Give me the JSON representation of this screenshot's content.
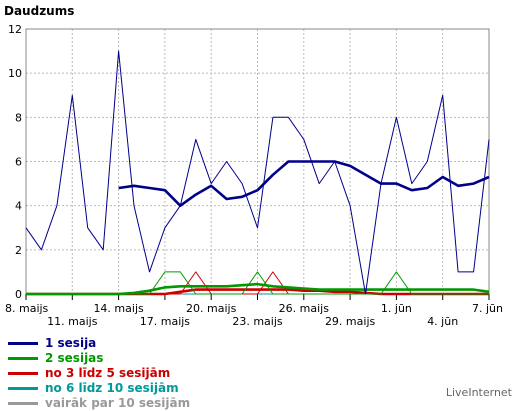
{
  "chart_data": {
    "type": "line",
    "title": "Daudzums",
    "ylim": [
      0,
      12
    ],
    "yticks": [
      0,
      2,
      4,
      6,
      8,
      10,
      12
    ],
    "grid": true,
    "x": [
      "8. maijs",
      "9. maijs",
      "10. maijs",
      "11. maijs",
      "12. maijs",
      "13. maijs",
      "14. maijs",
      "15. maijs",
      "16. maijs",
      "17. maijs",
      "18. maijs",
      "19. maijs",
      "20. maijs",
      "21. maijs",
      "22. maijs",
      "23. maijs",
      "24. maijs",
      "25. maijs",
      "26. maijs",
      "27. maijs",
      "28. maijs",
      "29. maijs",
      "30. maijs",
      "31. maijs",
      "1. jūn",
      "2. jūn",
      "3. jūn",
      "4. jūn",
      "5. jūn",
      "6. jūn",
      "7. jūn"
    ],
    "xtick_labels": [
      {
        "index": 0,
        "label": "8. maijs",
        "row": 0
      },
      {
        "index": 3,
        "label": "11. maijs",
        "row": 1
      },
      {
        "index": 6,
        "label": "14. maijs",
        "row": 0
      },
      {
        "index": 9,
        "label": "17. maijs",
        "row": 1
      },
      {
        "index": 12,
        "label": "20. maijs",
        "row": 0
      },
      {
        "index": 15,
        "label": "23. maijs",
        "row": 1
      },
      {
        "index": 18,
        "label": "26. maijs",
        "row": 0
      },
      {
        "index": 21,
        "label": "29. maijs",
        "row": 1
      },
      {
        "index": 24,
        "label": "1. jūn",
        "row": 0
      },
      {
        "index": 27,
        "label": "4. jūn",
        "row": 1
      },
      {
        "index": 30,
        "label": "7. jūn",
        "row": 0
      }
    ],
    "series": [
      {
        "name": "1 sesija",
        "color": "#00008b",
        "width": 1,
        "values": [
          3,
          2,
          4,
          9,
          3,
          2,
          11,
          4,
          1,
          3,
          4,
          7,
          5,
          6,
          5,
          3,
          8,
          8,
          7,
          5,
          6,
          4,
          0,
          5,
          8,
          5,
          6,
          9,
          1,
          1,
          7
        ]
      },
      {
        "name": "1 sesija (trend)",
        "color": "#00008b",
        "width": 2.6,
        "start": 6,
        "values": [
          null,
          null,
          null,
          null,
          null,
          null,
          4.8,
          4.9,
          4.8,
          4.7,
          4.0,
          4.5,
          4.9,
          4.3,
          4.4,
          4.7,
          5.4,
          6,
          6,
          6,
          6,
          5.8,
          5.4,
          5.0,
          5.0,
          4.7,
          4.8,
          5.3,
          4.9,
          5.0,
          5.3
        ]
      },
      {
        "name": "2 sesijas",
        "color": "#009900",
        "width": 1,
        "values": [
          0,
          0,
          0,
          0,
          0,
          0,
          0,
          0,
          0,
          1,
          1,
          0,
          0,
          0,
          0,
          1,
          0,
          0,
          0,
          0,
          0,
          0,
          0,
          0,
          1,
          0,
          0,
          0,
          0,
          0,
          0
        ]
      },
      {
        "name": "2 sesijas (trend)",
        "color": "#009900",
        "width": 2.6,
        "values": [
          0,
          0,
          0,
          0,
          0,
          0,
          0,
          0.05,
          0.15,
          0.3,
          0.35,
          0.35,
          0.35,
          0.35,
          0.4,
          0.45,
          0.35,
          0.3,
          0.25,
          0.2,
          0.2,
          0.2,
          0.2,
          0.2,
          0.2,
          0.2,
          0.2,
          0.2,
          0.2,
          0.2,
          0.1
        ]
      },
      {
        "name": "no 3 līdz 5 sesijām",
        "color": "#cc0000",
        "width": 1,
        "values": [
          0,
          0,
          0,
          0,
          0,
          0,
          0,
          0,
          0,
          0,
          0,
          1,
          0,
          0,
          0,
          0,
          1,
          0,
          0,
          0,
          0,
          0,
          0,
          0,
          0,
          0,
          0,
          0,
          0,
          0,
          0
        ]
      },
      {
        "name": "no 3 līdz 5 sesijām (trend)",
        "color": "#cc0000",
        "width": 2.6,
        "values": [
          0,
          0,
          0,
          0,
          0,
          0,
          0,
          0,
          0,
          0,
          0.1,
          0.2,
          0.2,
          0.2,
          0.2,
          0.2,
          0.2,
          0.2,
          0.15,
          0.15,
          0.1,
          0.1,
          0.05,
          0,
          0,
          0,
          0,
          0,
          0,
          0,
          0
        ]
      },
      {
        "name": "no 6 līdz 10 sesijām",
        "color": "#009999",
        "width": 1,
        "values": [
          0,
          0,
          0,
          0,
          0,
          0,
          0,
          0,
          0,
          0,
          0,
          0,
          0,
          0,
          0,
          0,
          0,
          0,
          0,
          0,
          0,
          0,
          0,
          0,
          0,
          0,
          0,
          0,
          0,
          0,
          0
        ]
      },
      {
        "name": "vairāk par 10 sesijām",
        "color": "#999999",
        "width": 1,
        "values": [
          0,
          0,
          0,
          0,
          0,
          0,
          0,
          0,
          0,
          0,
          0,
          0,
          0,
          0,
          0,
          0,
          0,
          0,
          0,
          0,
          0,
          0,
          0,
          0,
          0,
          0,
          0,
          0,
          0,
          0,
          0
        ]
      }
    ]
  },
  "legend": [
    {
      "label": "1 sesija",
      "color": "#00008b"
    },
    {
      "label": "2 sesijas",
      "color": "#009900"
    },
    {
      "label": "no 3 līdz 5 sesijām",
      "color": "#cc0000"
    },
    {
      "label": "no 6 līdz 10 sesijām",
      "color": "#009999"
    },
    {
      "label": "vairāk par 10 sesijām",
      "color": "#999999"
    }
  ],
  "brand": "LiveInternet"
}
